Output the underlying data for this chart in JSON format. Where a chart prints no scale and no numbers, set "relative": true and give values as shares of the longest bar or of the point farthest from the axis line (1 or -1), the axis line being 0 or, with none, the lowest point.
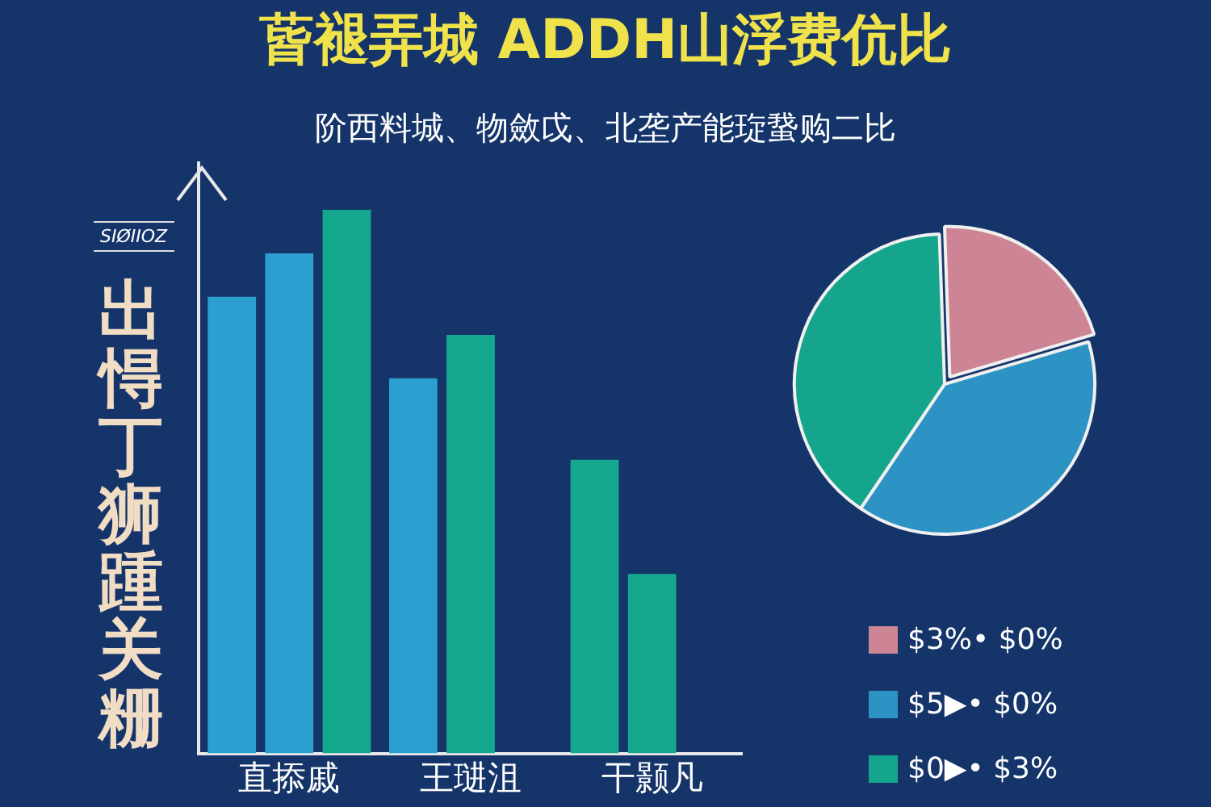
{
  "chart_data": [
    {
      "type": "bar",
      "title": "蒈褪弄城 ADDH山浮费伉比",
      "subtitle": "阶西料城、物斂戉、北垄产能琁䖸购二比",
      "ylabel": "出㥂丁狮踵关粣",
      "annotations": [
        "SIØIIOZ"
      ],
      "relative": true,
      "grid": false,
      "legend": false,
      "categories": [
        "直掭戚",
        "王琎沮",
        "干颢凡"
      ],
      "series": [
        {
          "colors": [
            "#2a9fd0",
            "#2a9fd0",
            "#14a98f"
          ],
          "values": [
            0.84,
            0.69,
            0.54
          ]
        },
        {
          "colors": [
            "#2a9fd0",
            "#14a98f",
            "#14a98f"
          ],
          "values": [
            0.92,
            0.77,
            0.33
          ]
        },
        {
          "colors": [
            "#14a98f",
            "#14a98f",
            "#14a98f"
          ],
          "values": [
            1,
            null,
            null
          ]
        }
      ]
    },
    {
      "type": "pie",
      "legend": "bottom right",
      "categories": [
        "$3%• $0%",
        "$5▶• $0%",
        "$0▶• $3%"
      ],
      "values": [
        21,
        39,
        40
      ],
      "colors": [
        "#cd8596",
        "#2c93c4",
        "#14a58c"
      ]
    }
  ]
}
